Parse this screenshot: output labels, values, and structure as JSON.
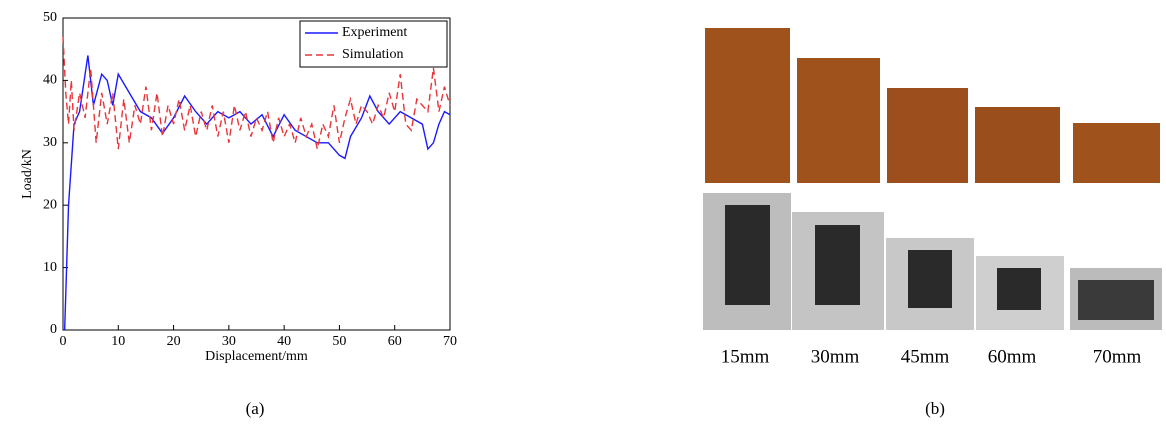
{
  "chart_data": {
    "type": "line",
    "xlabel": "Displacement/mm",
    "ylabel": "Load/kN",
    "xlim": [
      0,
      70
    ],
    "ylim": [
      0,
      50
    ],
    "xticks": [
      0,
      10,
      20,
      30,
      40,
      50,
      60,
      70
    ],
    "yticks": [
      0,
      10,
      20,
      30,
      40,
      50
    ],
    "legend": "upper right",
    "series": [
      {
        "name": "Experiment",
        "color": "#1a1aff",
        "dash": "solid",
        "x": [
          0.3,
          1,
          2,
          3,
          4.5,
          5.5,
          7,
          8,
          9,
          10,
          12,
          14,
          16,
          18,
          20,
          22,
          24,
          26,
          28,
          30,
          32,
          34,
          36,
          38,
          40,
          42,
          44,
          46,
          48,
          50,
          51,
          52,
          54,
          55.5,
          57,
          59,
          61,
          63,
          65,
          66,
          67,
          68,
          69,
          70
        ],
        "values": [
          0,
          20,
          33,
          35,
          44,
          36,
          41,
          40,
          36,
          41,
          38,
          35,
          34,
          31.5,
          34,
          37.5,
          35,
          33,
          35,
          34,
          35,
          33,
          34.5,
          31,
          34.5,
          32,
          31,
          30,
          30,
          28,
          27.5,
          31,
          34,
          37.5,
          35,
          33,
          35,
          34,
          33,
          29,
          30,
          33,
          35,
          34.5
        ]
      },
      {
        "name": "Simulation",
        "color": "#e8353a",
        "dash": "dashed",
        "x": [
          0,
          0.5,
          1,
          1.5,
          2,
          3,
          4,
          5,
          6,
          7,
          8,
          9,
          10,
          11,
          12,
          13,
          14,
          15,
          16,
          17,
          18,
          19,
          20,
          21,
          22,
          23,
          24,
          25,
          26,
          27,
          28,
          29,
          30,
          31,
          32,
          33,
          34,
          35,
          36,
          37,
          38,
          39,
          40,
          41,
          42,
          43,
          44,
          45,
          46,
          47,
          48,
          49,
          50,
          51,
          52,
          53,
          54,
          55,
          56,
          57,
          58,
          59,
          60,
          61,
          62,
          63,
          64,
          65,
          66,
          67,
          68,
          69,
          70
        ],
        "values": [
          47,
          38,
          33,
          40,
          32,
          38,
          34,
          42,
          30,
          38,
          33,
          38,
          29,
          37,
          30,
          36,
          33,
          39,
          32,
          38,
          31,
          36,
          33,
          37,
          32,
          36,
          31,
          35,
          32,
          36,
          31,
          35,
          30,
          36,
          32,
          35,
          31,
          34,
          32,
          35,
          30,
          34,
          31,
          33,
          30,
          34,
          31,
          33,
          29,
          33,
          31,
          36,
          30,
          34,
          37,
          33,
          36,
          35,
          33,
          36,
          34,
          38,
          35,
          41,
          33,
          32,
          37,
          36,
          35,
          42,
          35,
          39,
          36
        ]
      }
    ]
  },
  "panel_b": {
    "labels": [
      "15mm",
      "30mm",
      "45mm",
      "60mm",
      "70mm"
    ]
  },
  "captions": [
    "(a)",
    "(b)"
  ]
}
